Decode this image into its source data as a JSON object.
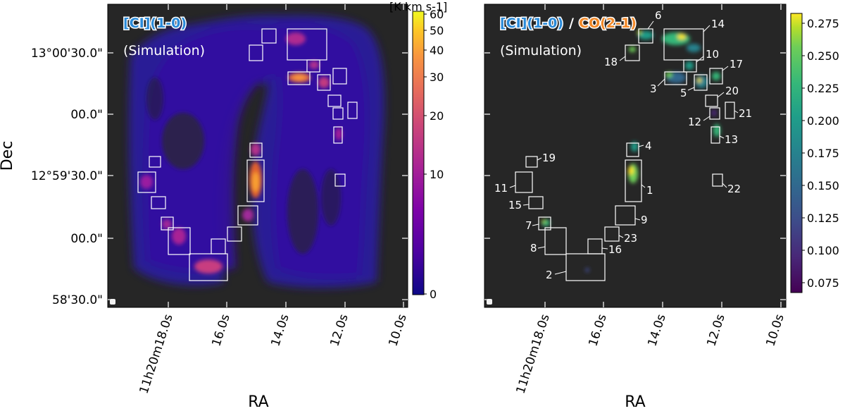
{
  "chart_data": [
    {
      "type": "heatmap",
      "xlabel": "RA",
      "ylabel": "Dec",
      "yticks": [
        "13°00'30.0\"",
        "00.0\"",
        "12°59'30.0\"",
        "00.0\"",
        "58'30.0\""
      ],
      "xticks": [
        "11h20m18.0s",
        "16.0s",
        "14.0s",
        "12.0s",
        "10.0s"
      ],
      "annotation_line1": "[CI](1-0)",
      "annotation_line2": "(Simulation)",
      "colorbar": {
        "label": "[K km s-1]",
        "ticks": [
          "60",
          "50",
          "40",
          "30",
          "20",
          "10",
          "0"
        ],
        "scale": "asinh-like (nonlinear)",
        "colormap": "plasma",
        "range": [
          0,
          60
        ]
      },
      "regions_drawn": 31,
      "background_color": "#262626"
    },
    {
      "type": "heatmap",
      "xlabel": "RA",
      "xticks": [
        "11h20m18.0s",
        "16.0s",
        "14.0s",
        "12.0s",
        "10.0s"
      ],
      "annotation_ci": "[CI](1-0)",
      "annotation_sep": "/",
      "annotation_co": "CO(2-1)",
      "annotation_line2": "(Simulation)",
      "colorbar": {
        "ticks": [
          "0.275",
          "0.250",
          "0.225",
          "0.200",
          "0.175",
          "0.150",
          "0.125",
          "0.100",
          "0.075"
        ],
        "colormap": "viridis",
        "range": [
          0.065,
          0.28
        ]
      },
      "regions": [
        {
          "id": "1"
        },
        {
          "id": "2"
        },
        {
          "id": "3"
        },
        {
          "id": "4"
        },
        {
          "id": "5"
        },
        {
          "id": "6"
        },
        {
          "id": "7"
        },
        {
          "id": "8"
        },
        {
          "id": "9"
        },
        {
          "id": "10"
        },
        {
          "id": "11"
        },
        {
          "id": "12"
        },
        {
          "id": "13"
        },
        {
          "id": "14"
        },
        {
          "id": "15"
        },
        {
          "id": "16"
        },
        {
          "id": "17"
        },
        {
          "id": "18"
        },
        {
          "id": "19"
        },
        {
          "id": "20"
        },
        {
          "id": "21"
        },
        {
          "id": "22"
        },
        {
          "id": "23"
        }
      ],
      "background_color": "#262626"
    }
  ]
}
